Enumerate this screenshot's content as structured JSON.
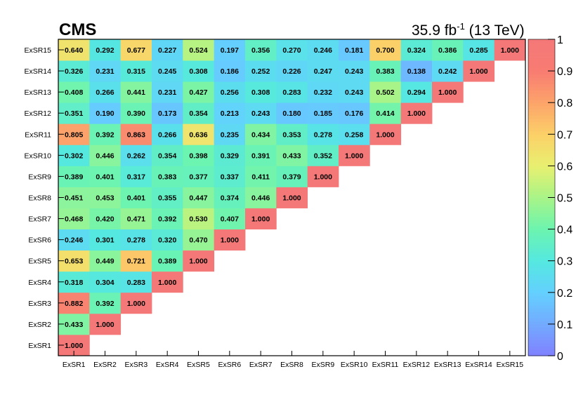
{
  "header": {
    "experiment": "CMS",
    "lumi_value": "35.9 fb",
    "lumi_exponent": "-1",
    "energy": "(13 TeV)"
  },
  "chart_data": {
    "type": "heatmap",
    "title": "",
    "xlabel": "",
    "ylabel": "",
    "labels": [
      "ExSR1",
      "ExSR2",
      "ExSR3",
      "ExSR4",
      "ExSR5",
      "ExSR6",
      "ExSR7",
      "ExSR8",
      "ExSR9",
      "ExSR10",
      "ExSR11",
      "ExSR12",
      "ExSR13",
      "ExSR14",
      "ExSR15"
    ],
    "matrix_lower_triangle": [
      [
        1.0
      ],
      [
        0.433,
        1.0
      ],
      [
        0.882,
        0.392,
        1.0
      ],
      [
        0.318,
        0.304,
        0.283,
        1.0
      ],
      [
        0.653,
        0.449,
        0.721,
        0.389,
        1.0
      ],
      [
        0.246,
        0.301,
        0.278,
        0.32,
        0.47,
        1.0
      ],
      [
        0.468,
        0.42,
        0.471,
        0.392,
        0.53,
        0.407,
        1.0
      ],
      [
        0.451,
        0.453,
        0.401,
        0.355,
        0.447,
        0.374,
        0.446,
        1.0
      ],
      [
        0.389,
        0.401,
        0.317,
        0.383,
        0.377,
        0.337,
        0.411,
        0.379,
        1.0
      ],
      [
        0.302,
        0.446,
        0.262,
        0.354,
        0.398,
        0.329,
        0.391,
        0.433,
        0.352,
        1.0
      ],
      [
        0.805,
        0.392,
        0.863,
        0.266,
        0.636,
        0.235,
        0.434,
        0.353,
        0.278,
        0.258,
        1.0
      ],
      [
        0.351,
        0.19,
        0.39,
        0.173,
        0.354,
        0.213,
        0.243,
        0.18,
        0.185,
        0.176,
        0.414,
        1.0
      ],
      [
        0.408,
        0.266,
        0.441,
        0.231,
        0.427,
        0.256,
        0.308,
        0.283,
        0.232,
        0.243,
        0.502,
        0.294,
        1.0
      ],
      [
        0.326,
        0.231,
        0.315,
        0.245,
        0.308,
        0.186,
        0.252,
        0.226,
        0.247,
        0.243,
        0.383,
        0.138,
        0.242,
        1.0
      ],
      [
        0.64,
        0.292,
        0.677,
        0.227,
        0.524,
        0.197,
        0.356,
        0.27,
        0.246,
        0.181,
        0.7,
        0.324,
        0.386,
        0.285,
        1.0
      ]
    ],
    "value_format_decimals": 3,
    "zrange": [
      0,
      1
    ],
    "colorbar_ticks": [
      0,
      0.1,
      0.2,
      0.3,
      0.4,
      0.5,
      0.6,
      0.7,
      0.8,
      0.9,
      1
    ],
    "colorbar_tick_labels": [
      "0",
      "0.1",
      "0.2",
      "0.3",
      "0.4",
      "0.5",
      "0.6",
      "0.7",
      "0.8",
      "0.9",
      "1"
    ],
    "colormap": [
      "#8080ff",
      "#73aaff",
      "#64d0ff",
      "#55e8e0",
      "#6cf4b0",
      "#a8f488",
      "#e8f070",
      "#fcd068",
      "#fca46a",
      "#f87c72",
      "#f47878"
    ],
    "grid": false,
    "legend": "none"
  }
}
